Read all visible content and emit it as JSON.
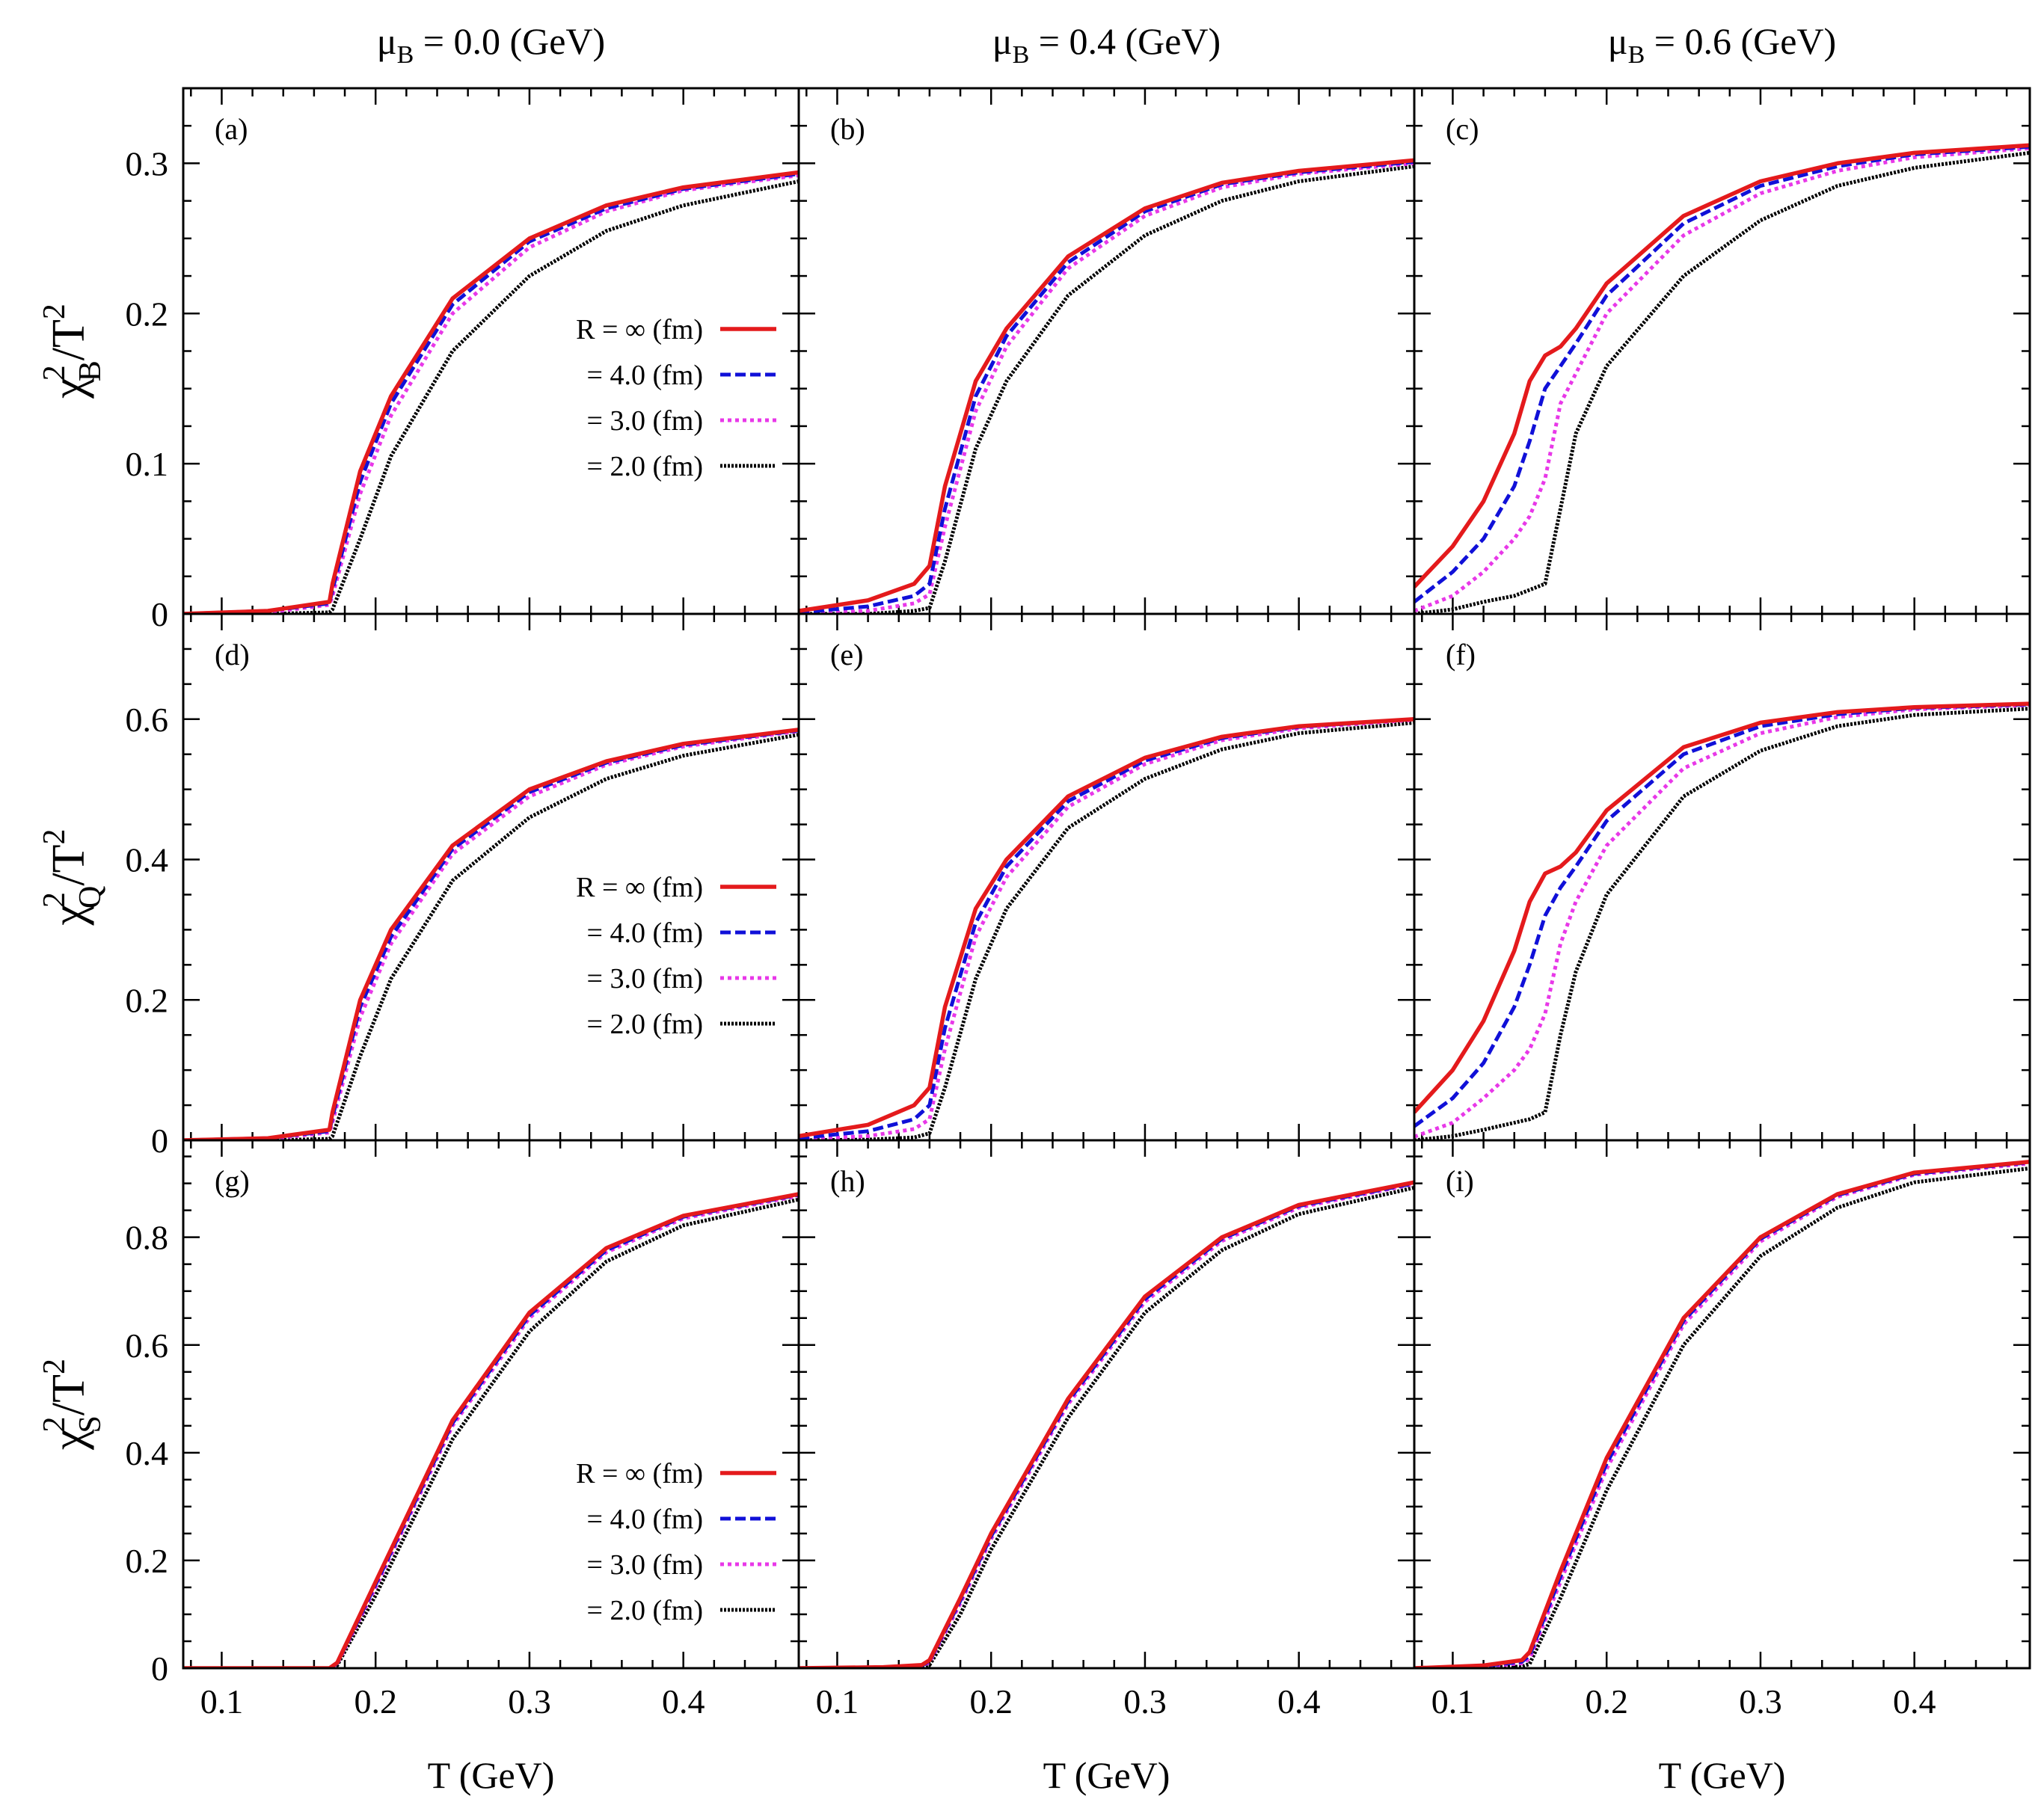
{
  "chart_data": {
    "type": "line",
    "layout": "3x3 grid",
    "column_titles": [
      {
        "mu": "μ",
        "sub": "B",
        "rest": " = 0.0 (GeV)"
      },
      {
        "mu": "μ",
        "sub": "B",
        "rest": " = 0.4 (GeV)"
      },
      {
        "mu": "μ",
        "sub": "B",
        "rest": " = 0.6 (GeV)"
      }
    ],
    "xlabel": "T (GeV)",
    "xlim": [
      0.075,
      0.475
    ],
    "xticks": [
      0.1,
      0.2,
      0.3,
      0.4
    ],
    "xtick_labels": [
      "0.1",
      "0.2",
      "0.3",
      "0.4"
    ],
    "rows": [
      {
        "ylabel": {
          "chi": "χ",
          "sup": "2",
          "sub": "B",
          "rest": "/T",
          "sup2": "2"
        },
        "ylim": [
          0,
          0.35
        ],
        "yticks": [
          0,
          0.1,
          0.2,
          0.3
        ],
        "ytick_labels": [
          "0",
          "0.1",
          "0.2",
          "0.3"
        ]
      },
      {
        "ylabel": {
          "chi": "χ",
          "sup": "2",
          "sub": "Q",
          "rest": "/T",
          "sup2": "2"
        },
        "ylim": [
          0,
          0.75
        ],
        "yticks": [
          0,
          0.2,
          0.4,
          0.6
        ],
        "ytick_labels": [
          "0",
          "0.2",
          "0.4",
          "0.6"
        ]
      },
      {
        "ylabel": {
          "chi": "χ",
          "sup": "2",
          "sub": "S",
          "rest": "/T",
          "sup2": "2"
        },
        "ylim": [
          0,
          0.98
        ],
        "yticks": [
          0,
          0.2,
          0.4,
          0.6,
          0.8
        ],
        "ytick_labels": [
          "0",
          "0.2",
          "0.4",
          "0.6",
          "0.8"
        ]
      }
    ],
    "legend": {
      "placement": "center-right of first column panels",
      "entries": [
        {
          "label": "R = ∞   (fm)",
          "series": "R_inf"
        },
        {
          "label": "= 4.0 (fm)",
          "series": "R_4"
        },
        {
          "label": "= 3.0 (fm)",
          "series": "R_3"
        },
        {
          "label": "= 2.0 (fm)",
          "series": "R_2"
        }
      ]
    },
    "series_styles": [
      {
        "name": "R_inf",
        "color": "#e41a1c",
        "dash": "solid"
      },
      {
        "name": "R_4",
        "color": "#1010d8",
        "dash": "dashed"
      },
      {
        "name": "R_3",
        "color": "#e838e8",
        "dash": "dotted"
      },
      {
        "name": "R_2",
        "color": "#000000",
        "dash": "dotted-fine"
      }
    ],
    "panels": [
      {
        "label": "(a)",
        "row": 0,
        "col": 0,
        "x": [
          0.075,
          0.13,
          0.17,
          0.172,
          0.19,
          0.21,
          0.25,
          0.3,
          0.35,
          0.4,
          0.475
        ],
        "series": [
          {
            "name": "R_inf",
            "values": [
              0,
              0.002,
              0.008,
              0.02,
              0.095,
              0.145,
              0.21,
              0.25,
              0.272,
              0.284,
              0.294
            ]
          },
          {
            "name": "R_4",
            "values": [
              0,
              0.002,
              0.007,
              0.016,
              0.088,
              0.14,
              0.206,
              0.248,
              0.27,
              0.283,
              0.293
            ]
          },
          {
            "name": "R_3",
            "values": [
              0,
              0.001,
              0.006,
              0.012,
              0.08,
              0.132,
              0.2,
              0.244,
              0.268,
              0.282,
              0.292
            ]
          },
          {
            "name": "R_2",
            "values": [
              0,
              0,
              0.001,
              0.003,
              0.05,
              0.105,
              0.175,
              0.225,
              0.255,
              0.272,
              0.288
            ]
          }
        ]
      },
      {
        "label": "(b)",
        "row": 0,
        "col": 1,
        "x": [
          0.075,
          0.12,
          0.15,
          0.16,
          0.17,
          0.19,
          0.21,
          0.25,
          0.3,
          0.35,
          0.4,
          0.475
        ],
        "series": [
          {
            "name": "R_inf",
            "values": [
              0.002,
              0.009,
              0.02,
              0.032,
              0.085,
              0.155,
              0.19,
              0.238,
              0.27,
              0.287,
              0.295,
              0.302
            ]
          },
          {
            "name": "R_4",
            "values": [
              0.001,
              0.005,
              0.012,
              0.02,
              0.07,
              0.145,
              0.185,
              0.234,
              0.268,
              0.286,
              0.294,
              0.301
            ]
          },
          {
            "name": "R_3",
            "values": [
              0,
              0.002,
              0.007,
              0.013,
              0.058,
              0.135,
              0.178,
              0.23,
              0.265,
              0.284,
              0.293,
              0.3
            ]
          },
          {
            "name": "R_2",
            "values": [
              0,
              0,
              0.002,
              0.004,
              0.035,
              0.11,
              0.155,
              0.212,
              0.252,
              0.275,
              0.288,
              0.298
            ]
          }
        ]
      },
      {
        "label": "(c)",
        "row": 0,
        "col": 2,
        "x": [
          0.075,
          0.1,
          0.12,
          0.14,
          0.15,
          0.16,
          0.17,
          0.18,
          0.2,
          0.25,
          0.3,
          0.35,
          0.4,
          0.475
        ],
        "series": [
          {
            "name": "R_inf",
            "values": [
              0.018,
              0.045,
              0.075,
              0.12,
              0.155,
              0.172,
              0.178,
              0.19,
              0.22,
              0.265,
              0.288,
              0.3,
              0.307,
              0.312
            ]
          },
          {
            "name": "R_4",
            "values": [
              0.008,
              0.028,
              0.05,
              0.085,
              0.115,
              0.15,
              0.165,
              0.18,
              0.212,
              0.26,
              0.285,
              0.298,
              0.306,
              0.311
            ]
          },
          {
            "name": "R_3",
            "values": [
              0.002,
              0.012,
              0.028,
              0.05,
              0.065,
              0.09,
              0.14,
              0.16,
              0.2,
              0.252,
              0.28,
              0.295,
              0.304,
              0.31
            ]
          },
          {
            "name": "R_2",
            "values": [
              0,
              0.003,
              0.008,
              0.012,
              0.016,
              0.02,
              0.07,
              0.12,
              0.165,
              0.225,
              0.262,
              0.285,
              0.297,
              0.307
            ]
          }
        ]
      },
      {
        "label": "(d)",
        "row": 1,
        "col": 0,
        "x": [
          0.075,
          0.13,
          0.17,
          0.172,
          0.19,
          0.21,
          0.25,
          0.3,
          0.35,
          0.4,
          0.475
        ],
        "series": [
          {
            "name": "R_inf",
            "values": [
              0,
              0.003,
              0.015,
              0.04,
              0.2,
              0.3,
              0.42,
              0.5,
              0.54,
              0.565,
              0.585
            ]
          },
          {
            "name": "R_4",
            "values": [
              0,
              0.003,
              0.013,
              0.033,
              0.19,
              0.29,
              0.415,
              0.496,
              0.538,
              0.563,
              0.584
            ]
          },
          {
            "name": "R_3",
            "values": [
              0,
              0.002,
              0.011,
              0.026,
              0.175,
              0.28,
              0.408,
              0.49,
              0.535,
              0.561,
              0.583
            ]
          },
          {
            "name": "R_2",
            "values": [
              0,
              0,
              0.002,
              0.006,
              0.12,
              0.23,
              0.37,
              0.46,
              0.515,
              0.548,
              0.578
            ]
          }
        ]
      },
      {
        "label": "(e)",
        "row": 1,
        "col": 1,
        "x": [
          0.075,
          0.12,
          0.15,
          0.16,
          0.17,
          0.19,
          0.21,
          0.25,
          0.3,
          0.35,
          0.4,
          0.475
        ],
        "series": [
          {
            "name": "R_inf",
            "values": [
              0.006,
              0.022,
              0.05,
              0.075,
              0.19,
              0.33,
              0.4,
              0.49,
              0.545,
              0.575,
              0.59,
              0.6
            ]
          },
          {
            "name": "R_4",
            "values": [
              0.003,
              0.013,
              0.03,
              0.05,
              0.16,
              0.31,
              0.39,
              0.483,
              0.541,
              0.573,
              0.589,
              0.6
            ]
          },
          {
            "name": "R_3",
            "values": [
              0.001,
              0.006,
              0.016,
              0.03,
              0.13,
              0.29,
              0.375,
              0.475,
              0.536,
              0.57,
              0.587,
              0.599
            ]
          },
          {
            "name": "R_2",
            "values": [
              0,
              0.001,
              0.004,
              0.01,
              0.075,
              0.23,
              0.33,
              0.445,
              0.515,
              0.557,
              0.58,
              0.595
            ]
          }
        ]
      },
      {
        "label": "(f)",
        "row": 1,
        "col": 2,
        "x": [
          0.075,
          0.1,
          0.12,
          0.14,
          0.15,
          0.16,
          0.17,
          0.18,
          0.2,
          0.25,
          0.3,
          0.35,
          0.4,
          0.475
        ],
        "series": [
          {
            "name": "R_inf",
            "values": [
              0.04,
              0.1,
              0.17,
              0.27,
              0.34,
              0.38,
              0.39,
              0.41,
              0.47,
              0.56,
              0.595,
              0.61,
              0.617,
              0.622
            ]
          },
          {
            "name": "R_4",
            "values": [
              0.02,
              0.06,
              0.11,
              0.19,
              0.25,
              0.32,
              0.36,
              0.39,
              0.455,
              0.55,
              0.59,
              0.607,
              0.616,
              0.621
            ]
          },
          {
            "name": "R_3",
            "values": [
              0.005,
              0.025,
              0.06,
              0.1,
              0.13,
              0.18,
              0.28,
              0.34,
              0.42,
              0.53,
              0.58,
              0.603,
              0.614,
              0.62
            ]
          },
          {
            "name": "R_2",
            "values": [
              0,
              0.006,
              0.015,
              0.025,
              0.03,
              0.04,
              0.15,
              0.24,
              0.35,
              0.49,
              0.555,
              0.59,
              0.606,
              0.615
            ]
          }
        ]
      },
      {
        "label": "(g)",
        "row": 2,
        "col": 0,
        "x": [
          0.075,
          0.13,
          0.17,
          0.175,
          0.2,
          0.25,
          0.3,
          0.35,
          0.4,
          0.475
        ],
        "series": [
          {
            "name": "R_inf",
            "values": [
              0,
              0,
              0,
              0.01,
              0.16,
              0.46,
              0.66,
              0.78,
              0.84,
              0.88
            ]
          },
          {
            "name": "R_4",
            "values": [
              0,
              0,
              0,
              0.009,
              0.155,
              0.455,
              0.655,
              0.776,
              0.838,
              0.879
            ]
          },
          {
            "name": "R_3",
            "values": [
              0,
              0,
              0,
              0.008,
              0.15,
              0.45,
              0.65,
              0.772,
              0.835,
              0.877
            ]
          },
          {
            "name": "R_2",
            "values": [
              0,
              0,
              0,
              0.005,
              0.135,
              0.425,
              0.625,
              0.755,
              0.822,
              0.87
            ]
          }
        ]
      },
      {
        "label": "(h)",
        "row": 2,
        "col": 1,
        "x": [
          0.075,
          0.13,
          0.155,
          0.16,
          0.18,
          0.2,
          0.25,
          0.3,
          0.35,
          0.4,
          0.475
        ],
        "series": [
          {
            "name": "R_inf",
            "values": [
              0,
              0.002,
              0.006,
              0.015,
              0.13,
              0.25,
              0.5,
              0.69,
              0.8,
              0.86,
              0.902
            ]
          },
          {
            "name": "R_4",
            "values": [
              0,
              0.002,
              0.005,
              0.013,
              0.125,
              0.245,
              0.495,
              0.685,
              0.797,
              0.858,
              0.9
            ]
          },
          {
            "name": "R_3",
            "values": [
              0,
              0.001,
              0.004,
              0.011,
              0.12,
              0.24,
              0.49,
              0.68,
              0.793,
              0.855,
              0.899
            ]
          },
          {
            "name": "R_2",
            "values": [
              0,
              0,
              0.002,
              0.006,
              0.1,
              0.22,
              0.465,
              0.66,
              0.776,
              0.843,
              0.892
            ]
          }
        ]
      },
      {
        "label": "(i)",
        "row": 2,
        "col": 2,
        "x": [
          0.075,
          0.12,
          0.145,
          0.15,
          0.17,
          0.2,
          0.25,
          0.3,
          0.35,
          0.4,
          0.475
        ],
        "series": [
          {
            "name": "R_inf",
            "values": [
              0,
              0.005,
              0.015,
              0.03,
              0.18,
              0.39,
              0.65,
              0.8,
              0.88,
              0.92,
              0.94
            ]
          },
          {
            "name": "R_4",
            "values": [
              0,
              0.004,
              0.012,
              0.024,
              0.17,
              0.38,
              0.645,
              0.797,
              0.878,
              0.918,
              0.939
            ]
          },
          {
            "name": "R_3",
            "values": [
              0,
              0.003,
              0.009,
              0.018,
              0.16,
              0.37,
              0.638,
              0.792,
              0.875,
              0.916,
              0.937
            ]
          },
          {
            "name": "R_2",
            "values": [
              0,
              0.001,
              0.003,
              0.008,
              0.13,
              0.33,
              0.6,
              0.765,
              0.855,
              0.902,
              0.928
            ]
          }
        ]
      }
    ]
  }
}
